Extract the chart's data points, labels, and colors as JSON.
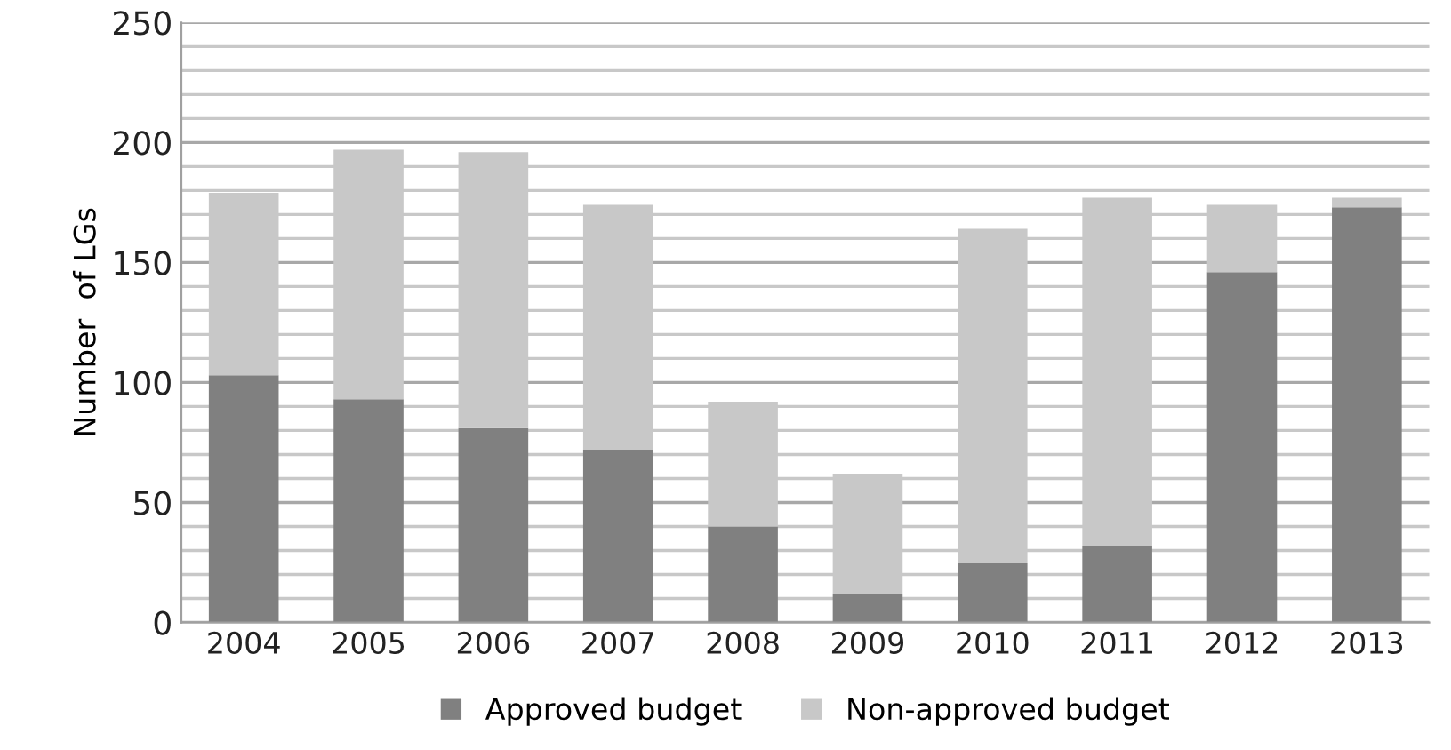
{
  "chart_data": {
    "type": "bar",
    "stacked": true,
    "ylabel": "Number  of LGs",
    "categories": [
      "2004",
      "2005",
      "2006",
      "2007",
      "2008",
      "2009",
      "2010",
      "2011",
      "2012",
      "2013"
    ],
    "series": [
      {
        "name": "Approved budget",
        "color": "#808080",
        "values": [
          103,
          93,
          81,
          72,
          40,
          12,
          25,
          32,
          146,
          173
        ]
      },
      {
        "name": "Non-approved budget",
        "color": "#c8c8c8",
        "values": [
          76,
          104,
          115,
          102,
          52,
          50,
          139,
          145,
          28,
          4
        ]
      }
    ],
    "ylim": [
      0,
      250
    ],
    "yticks": [
      0,
      {
        "value": 10,
        "label": null
      },
      {
        "value": 20,
        "label": null
      },
      {
        "value": 30,
        "label": null
      },
      {
        "value": 40,
        "label": null
      },
      50,
      {
        "value": 60,
        "label": null
      },
      {
        "value": 70,
        "label": null
      },
      {
        "value": 80,
        "label": null
      },
      {
        "value": 90,
        "label": null
      },
      100,
      {
        "value": 110,
        "label": null
      },
      {
        "value": 120,
        "label": null
      },
      {
        "value": 130,
        "label": null
      },
      {
        "value": 140,
        "label": null
      },
      150,
      {
        "value": 160,
        "label": null
      },
      {
        "value": 170,
        "label": null
      },
      {
        "value": 180,
        "label": null
      },
      {
        "value": 190,
        "label": null
      },
      200,
      {
        "value": 210,
        "label": null
      },
      {
        "value": 220,
        "label": null
      },
      {
        "value": 230,
        "label": null
      },
      {
        "value": 240,
        "label": null
      },
      250
    ],
    "grid": "y",
    "legend": "bottom"
  }
}
